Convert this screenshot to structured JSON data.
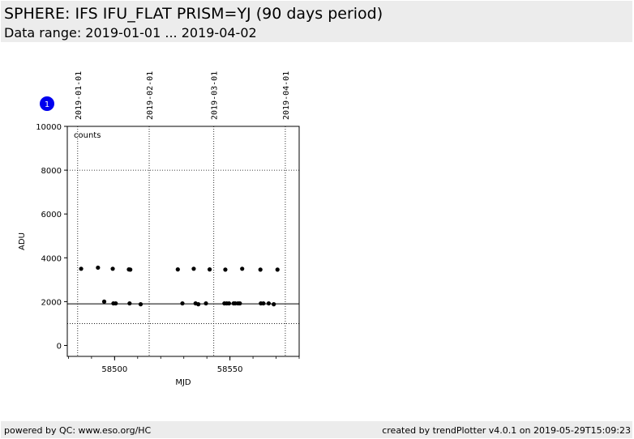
{
  "header": {
    "title": "SPHERE: IFS IFU_FLAT PRISM=YJ (90 days period)",
    "subtitle": "Data range: 2019-01-01 ... 2019-04-02"
  },
  "footer": {
    "left": "powered by QC: www.eso.org/HC",
    "right": "created by trendPlotter v4.0.1 on 2019-05-29T15:09:23"
  },
  "colors": {
    "badge": "#0000ee",
    "points": "#000000"
  },
  "chart_data": {
    "type": "scatter",
    "badge": "1",
    "legend_text": "counts",
    "xlabel": "MJD",
    "ylabel": "ADU",
    "xlim": [
      58479.5,
      58580.0
    ],
    "ylim": [
      -500,
      10000
    ],
    "xticks": [
      58500,
      58550
    ],
    "yticks": [
      0,
      2000,
      4000,
      6000,
      8000,
      10000
    ],
    "date_markers": [
      {
        "x": 58484,
        "label": "2019-01-01"
      },
      {
        "x": 58515,
        "label": "2019-02-01"
      },
      {
        "x": 58543,
        "label": "2019-03-01"
      },
      {
        "x": 58574,
        "label": "2019-04-01"
      }
    ],
    "reference_line": 1900,
    "dotted_hlines": [
      1000,
      8000
    ],
    "series": [
      {
        "points": [
          [
            58485.5,
            3500
          ],
          [
            58492.8,
            3550
          ],
          [
            58495.5,
            2000
          ],
          [
            58499.2,
            3500
          ],
          [
            58499.5,
            1920
          ],
          [
            58500.5,
            1920
          ],
          [
            58506.2,
            3470
          ],
          [
            58506.5,
            1920
          ],
          [
            58506.8,
            3460
          ],
          [
            58511.3,
            1880
          ],
          [
            58527.4,
            3470
          ],
          [
            58529.4,
            1920
          ],
          [
            58534.3,
            3500
          ],
          [
            58535.1,
            1920
          ],
          [
            58536.3,
            1880
          ],
          [
            58539.6,
            1920
          ],
          [
            58541.2,
            3470
          ],
          [
            58547.6,
            1920
          ],
          [
            58548.0,
            3460
          ],
          [
            58548.6,
            1920
          ],
          [
            58549.6,
            1920
          ],
          [
            58551.6,
            1920
          ],
          [
            58552.3,
            1920
          ],
          [
            58553.5,
            1920
          ],
          [
            58554.3,
            1920
          ],
          [
            58555.3,
            3500
          ],
          [
            58563.2,
            3460
          ],
          [
            58563.4,
            1920
          ],
          [
            58564.5,
            1920
          ],
          [
            58566.8,
            1920
          ],
          [
            58569.0,
            1880
          ],
          [
            58570.6,
            3460
          ]
        ]
      }
    ]
  }
}
